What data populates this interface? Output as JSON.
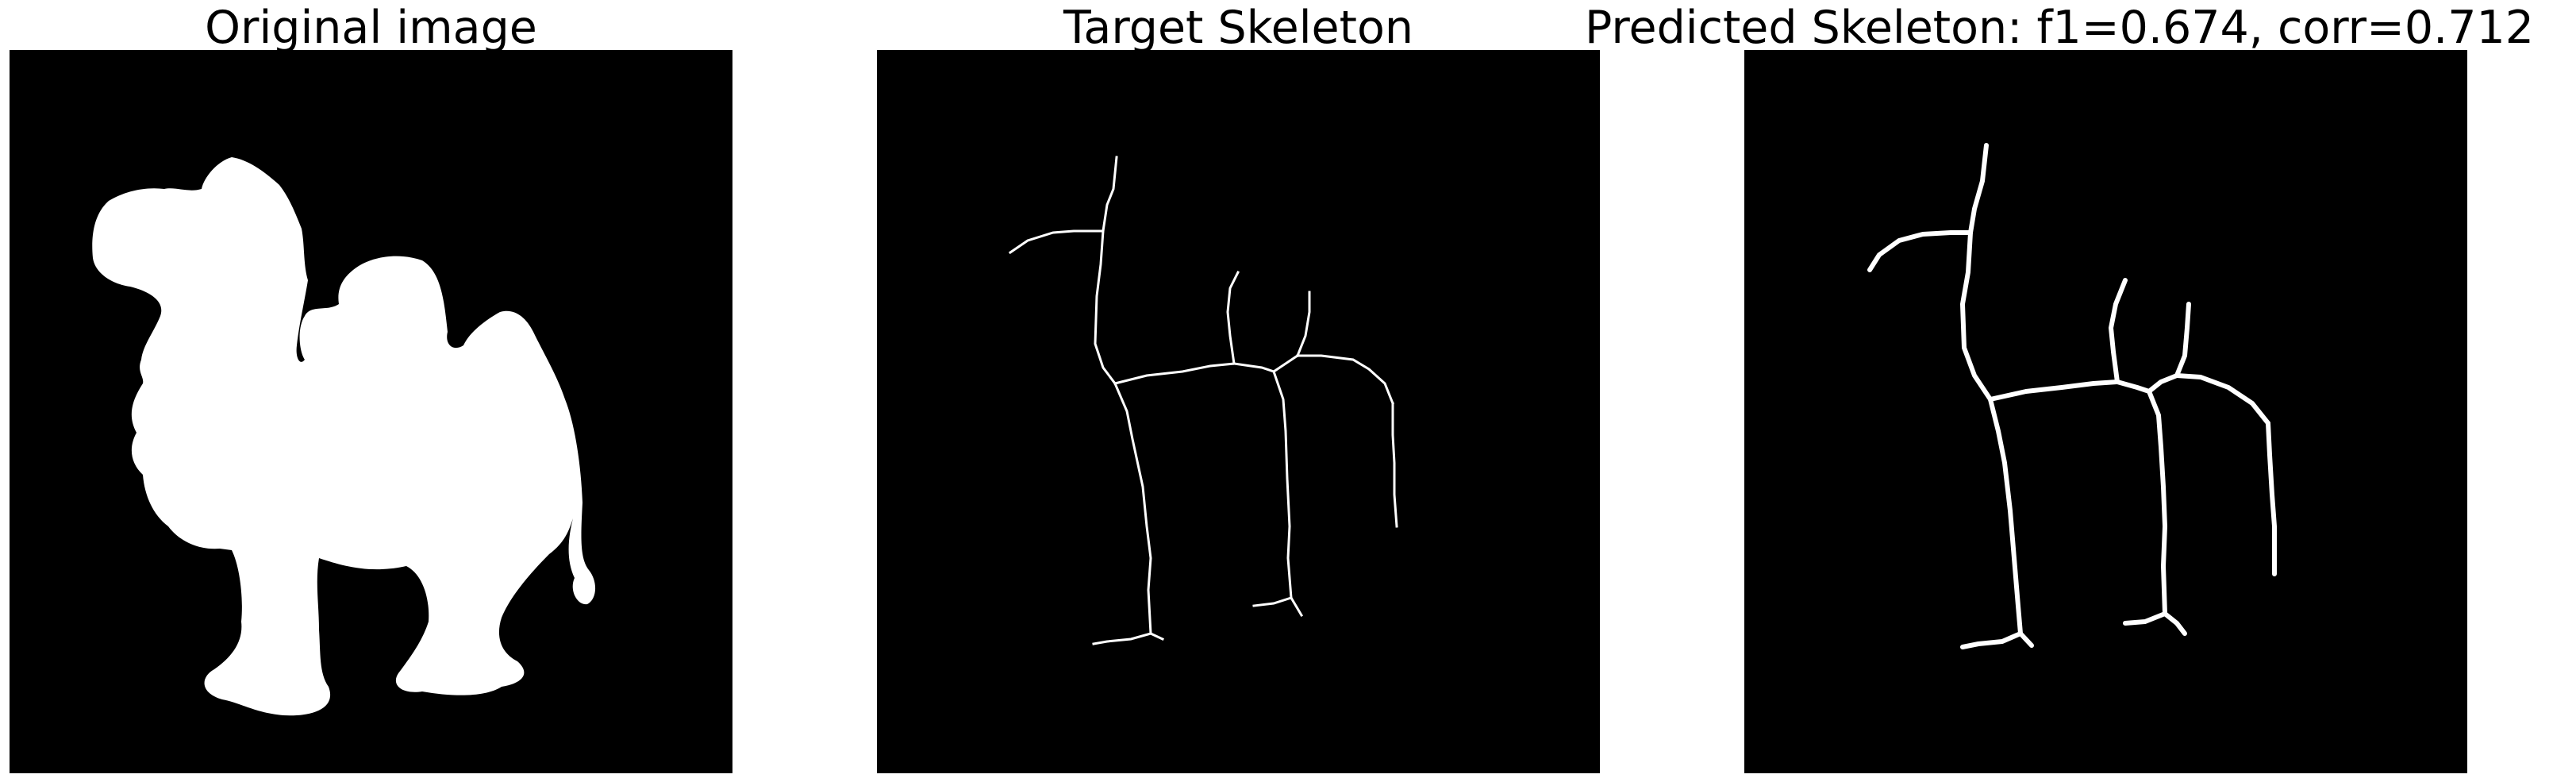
{
  "panels": [
    {
      "title": "Original image"
    },
    {
      "title": "Target Skeleton"
    },
    {
      "title": "Predicted Skeleton: f1=0.674, corr=0.712"
    }
  ],
  "colors": {
    "background": "#000000",
    "foreground": "#ffffff",
    "page": "#ffffff"
  },
  "scores": {
    "f1": 0.674,
    "corr": 0.712
  }
}
